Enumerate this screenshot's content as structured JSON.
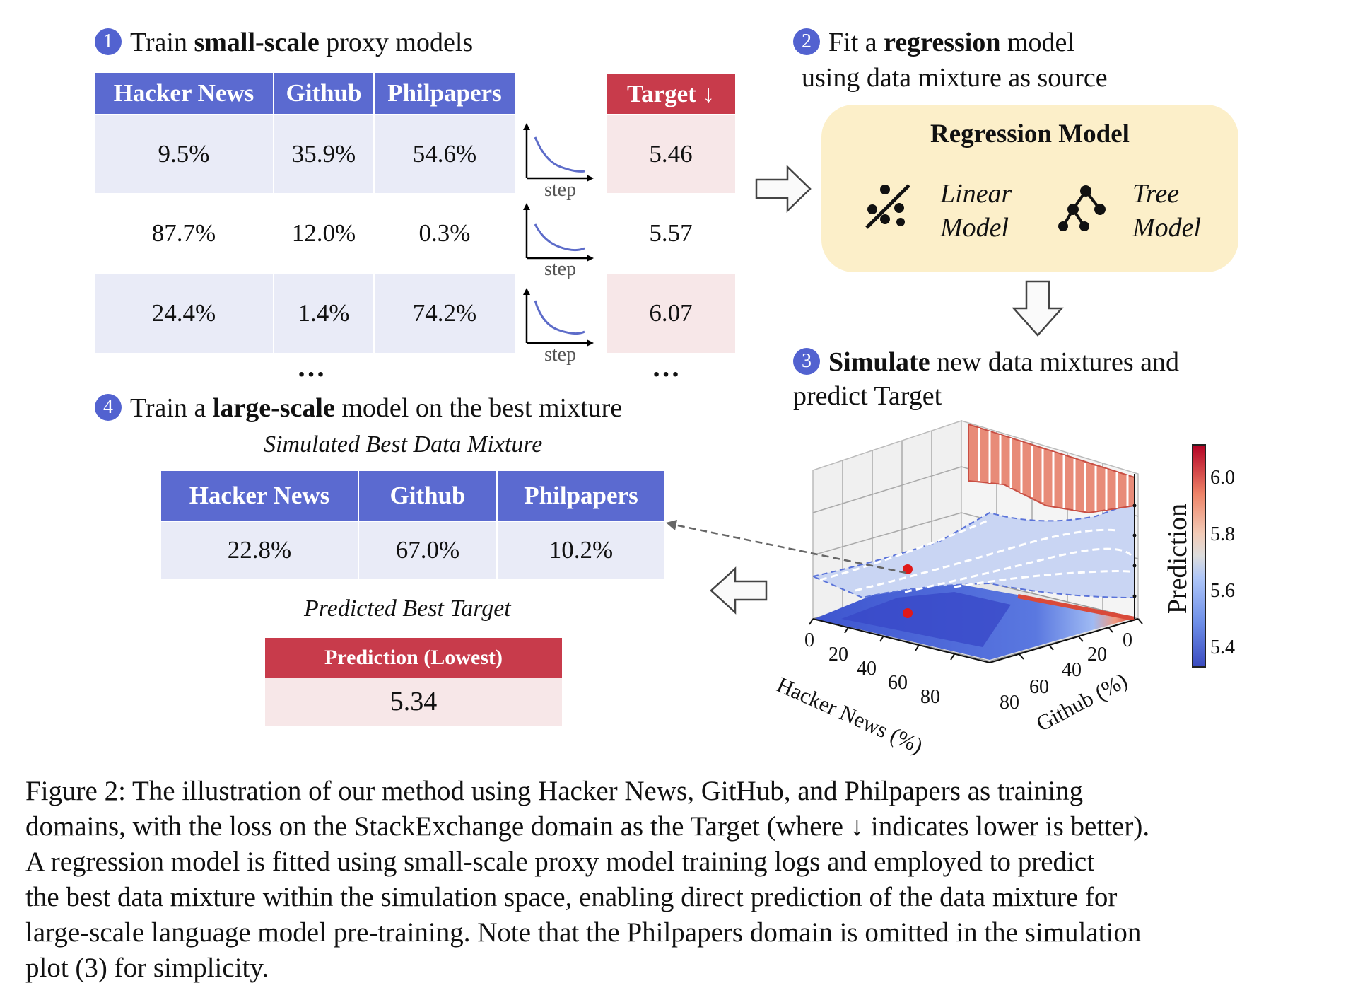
{
  "step1": {
    "num": "1",
    "pre": "Train ",
    "bold": "small-scale",
    "post": " proxy models"
  },
  "step2": {
    "num": "2",
    "pre": "Fit a ",
    "bold": "regression",
    "post": " model",
    "line2": "using data mixture as source"
  },
  "step3": {
    "num": "3",
    "bold": "Simulate",
    "post": " new data mixtures and",
    "line2": "predict Target"
  },
  "step4": {
    "num": "4",
    "pre": "Train a ",
    "bold": "large-scale",
    "post": " model on the best mixture"
  },
  "proxy_table": {
    "headers": [
      "Hacker News",
      "Github",
      "Philpapers"
    ],
    "target_header": "Target ↓",
    "rows": [
      {
        "hn": "9.5%",
        "gh": "35.9%",
        "pp": "54.6%",
        "target": "5.46"
      },
      {
        "hn": "87.7%",
        "gh": "12.0%",
        "pp": "0.3%",
        "target": "5.57"
      },
      {
        "hn": "24.4%",
        "gh": "1.4%",
        "pp": "74.2%",
        "target": "6.07"
      }
    ],
    "ellipsis": "…",
    "curve_label": "step"
  },
  "regression_box": {
    "title": "Regression Model",
    "linear": [
      "Linear",
      "Model"
    ],
    "tree": [
      "Tree",
      "Model"
    ]
  },
  "best_mixture": {
    "title": "Simulated Best Data Mixture",
    "headers": [
      "Hacker News",
      "Github",
      "Philpapers"
    ],
    "values": [
      "22.8%",
      "67.0%",
      "10.2%"
    ]
  },
  "best_target": {
    "title": "Predicted Best Target",
    "header": "Prediction (Lowest)",
    "value": "5.34"
  },
  "plot": {
    "hn_axis_label": "Hacker News (%)",
    "gh_axis_label": "Github (%)",
    "hn_ticks": [
      "0",
      "20",
      "40",
      "60",
      "80"
    ],
    "gh_ticks": [
      "0",
      "20",
      "40",
      "60",
      "80"
    ],
    "colorbar_label": "Prediction",
    "colorbar_ticks": [
      "6.0",
      "5.8",
      "5.6",
      "5.4"
    ],
    "colors": {
      "low": "#3b4cc0",
      "mid": "#dddddd",
      "high": "#b40426"
    }
  },
  "caption": [
    "Figure 2: The illustration of our method using Hacker News, GitHub, and Philpapers as training",
    "domains, with the loss on the StackExchange domain as the Target (where ↓ indicates lower is better).",
    "A regression model is fitted using small-scale proxy model training logs and employed to predict",
    "the best data mixture within the simulation space, enabling direct prediction of the data mixture for",
    "large-scale language model pre-training. Note that the Philpapers domain is omitted in the simulation",
    "plot (3) for simplicity."
  ]
}
